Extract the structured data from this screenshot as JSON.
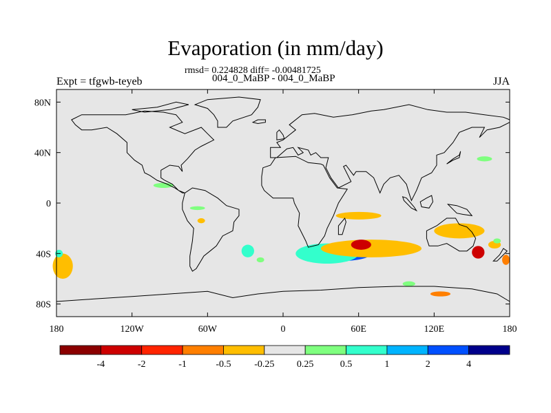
{
  "title": "Evaporation (in mm/day)",
  "stats_line": "rmsd= 0.224828 diff= -0.00481725",
  "cases_line": "004_0_MaBP - 004_0_MaBP",
  "experiment_label": "Expt = tfgwb-teyeb",
  "season_label": "JJA",
  "map": {
    "projection": "cylindrical-equidistant",
    "lon_range": [
      -180,
      180
    ],
    "lat_range": [
      -90,
      90
    ],
    "ocean_background_color": "#e6e6e6",
    "x_ticks": [
      {
        "value": -180,
        "label": "180"
      },
      {
        "value": -120,
        "label": "120W"
      },
      {
        "value": -60,
        "label": "60W"
      },
      {
        "value": 0,
        "label": "0"
      },
      {
        "value": 60,
        "label": "60E"
      },
      {
        "value": 120,
        "label": "120E"
      },
      {
        "value": 180,
        "label": "180"
      }
    ],
    "y_ticks": [
      {
        "value": 80,
        "label": "80N"
      },
      {
        "value": 40,
        "label": "40N"
      },
      {
        "value": 0,
        "label": "0"
      },
      {
        "value": -40,
        "label": "40S"
      },
      {
        "value": -80,
        "label": "80S"
      }
    ]
  },
  "colorbar": {
    "colors": [
      "#8b0000",
      "#cd0000",
      "#ff2400",
      "#ff7f00",
      "#ffbe00",
      "#e6e6e6",
      "#7fff7f",
      "#33ffcc",
      "#00b4ff",
      "#0050ff",
      "#00008b"
    ],
    "labels": [
      "-4",
      "-2",
      "-1",
      "-0.5",
      "-0.25",
      "0.25",
      "0.5",
      "1",
      "2",
      "4"
    ]
  },
  "anomaly_regions": [
    {
      "name": "south-atlantic-indian-blue",
      "lon": 45,
      "lat": -40,
      "rx": 25,
      "ry": 6,
      "color": "#0050ff"
    },
    {
      "name": "south-atlantic-cyan",
      "lon": 35,
      "lat": -40,
      "rx": 25,
      "ry": 8,
      "color": "#33ffcc"
    },
    {
      "name": "south-indian-orange",
      "lon": 70,
      "lat": -36,
      "rx": 40,
      "ry": 7,
      "color": "#ffbe00"
    },
    {
      "name": "south-indian-red",
      "lon": 62,
      "lat": -33,
      "rx": 8,
      "ry": 4,
      "color": "#cd0000"
    },
    {
      "name": "east-australia-red",
      "lon": 155,
      "lat": -39,
      "rx": 5,
      "ry": 5,
      "color": "#cd0000"
    },
    {
      "name": "australia-orange",
      "lon": 140,
      "lat": -22,
      "rx": 20,
      "ry": 6,
      "color": "#ffbe00"
    },
    {
      "name": "dateline-south-orange",
      "lon": -175,
      "lat": -50,
      "rx": 8,
      "ry": 10,
      "color": "#ffbe00"
    },
    {
      "name": "dateline-south-cyan",
      "lon": -178,
      "lat": -40,
      "rx": 3,
      "ry": 3,
      "color": "#33ffcc"
    },
    {
      "name": "south-america-cyan",
      "lon": -28,
      "lat": -38,
      "rx": 5,
      "ry": 5,
      "color": "#33ffcc"
    },
    {
      "name": "atlantic-green",
      "lon": -68,
      "lat": -4,
      "rx": 6,
      "ry": 1.5,
      "color": "#7fff7f"
    },
    {
      "name": "central-america-green",
      "lon": -95,
      "lat": 14,
      "rx": 8,
      "ry": 2,
      "color": "#7fff7f"
    },
    {
      "name": "central-pacific-orange",
      "lon": -65,
      "lat": -14,
      "rx": 3,
      "ry": 2,
      "color": "#ffbe00"
    },
    {
      "name": "indian-orange-band",
      "lon": 60,
      "lat": -10,
      "rx": 18,
      "ry": 3,
      "color": "#ffbe00"
    },
    {
      "name": "pacific-green",
      "lon": 160,
      "lat": 35,
      "rx": 6,
      "ry": 2,
      "color": "#7fff7f"
    },
    {
      "name": "antarctic-orange",
      "lon": 125,
      "lat": -72,
      "rx": 8,
      "ry": 2,
      "color": "#ff7f00"
    },
    {
      "name": "antarctic-green",
      "lon": 100,
      "lat": -64,
      "rx": 5,
      "ry": 2,
      "color": "#7fff7f"
    },
    {
      "name": "south-atlantic-green",
      "lon": -18,
      "lat": -45,
      "rx": 3,
      "ry": 2,
      "color": "#7fff7f"
    },
    {
      "name": "east-australia-pink",
      "lon": 168,
      "lat": -33,
      "rx": 5,
      "ry": 3,
      "color": "#ffbe00"
    },
    {
      "name": "east-australia-green",
      "lon": 170,
      "lat": -30,
      "rx": 3,
      "ry": 2,
      "color": "#7fff7f"
    },
    {
      "name": "far-east-orange",
      "lon": 177,
      "lat": -45,
      "rx": 3,
      "ry": 4,
      "color": "#ff7f00"
    }
  ]
}
